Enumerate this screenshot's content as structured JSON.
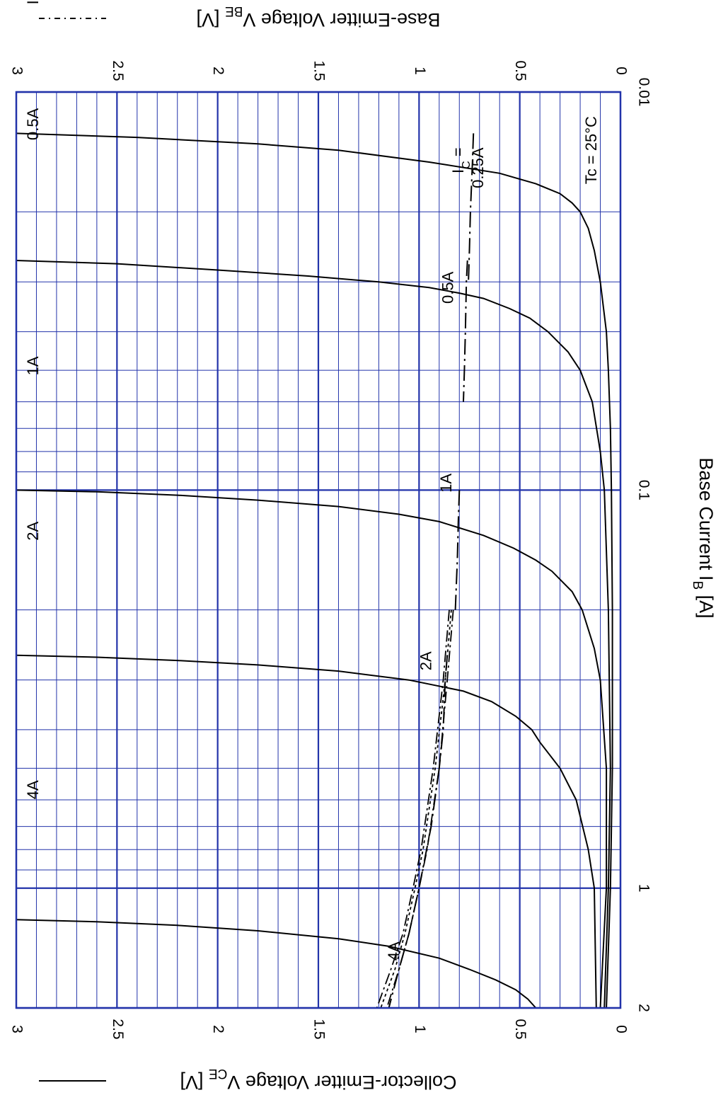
{
  "chart_data": {
    "type": "line",
    "orientation": "rotated-90-clockwise",
    "x_axis": {
      "label": "Base Current  I",
      "label_subscript": "B",
      "label_unit": "  [A]",
      "scale": "log",
      "range": [
        0.01,
        2
      ],
      "tick_labels": [
        "0.01",
        "0.1",
        "1",
        "2"
      ],
      "tick_values": [
        0.01,
        0.1,
        1,
        2
      ]
    },
    "y_axis_left": {
      "label": "Collector-Emitter Voltage  V",
      "label_subscript": "CE",
      "label_unit": " [V]",
      "range": [
        0,
        3
      ],
      "tick_labels": [
        "0",
        "0.5",
        "1",
        "1.5",
        "2",
        "2.5",
        "3"
      ],
      "tick_values": [
        0,
        0.5,
        1,
        1.5,
        2,
        2.5,
        3
      ],
      "line_style": "solid"
    },
    "y_axis_right": {
      "label": "Base-Emitter Voltage  V",
      "label_subscript": "BE",
      "label_unit": " [V]",
      "range": [
        0,
        3
      ],
      "tick_labels": [
        "0",
        "0.5",
        "1",
        "1.5",
        "2",
        "2.5",
        "3"
      ],
      "tick_values": [
        0,
        0.5,
        1,
        1.5,
        2,
        2.5,
        3
      ],
      "line_style": "dash-dot"
    },
    "grid": true,
    "grid_color": "#2233aa",
    "condition_label": "Tc = 25°C",
    "vce_series": [
      {
        "name": "IC = 0.25A",
        "label": "I",
        "label_sub": "C",
        "label_rest": " = 0.25A",
        "x": [
          0.0127,
          0.013,
          0.0135,
          0.014,
          0.015,
          0.016,
          0.017,
          0.018,
          0.019,
          0.02,
          0.022,
          0.025,
          0.03,
          0.04,
          0.05,
          0.07,
          0.1,
          0.2,
          0.5,
          1.0,
          2.0
        ],
        "y": [
          3.0,
          2.4,
          1.8,
          1.4,
          0.95,
          0.6,
          0.42,
          0.3,
          0.24,
          0.2,
          0.16,
          0.13,
          0.1,
          0.07,
          0.06,
          0.05,
          0.045,
          0.04,
          0.04,
          0.05,
          0.07
        ]
      },
      {
        "name": "0.5A",
        "label": "0.5A",
        "x": [
          0.0265,
          0.027,
          0.028,
          0.029,
          0.03,
          0.031,
          0.032,
          0.033,
          0.035,
          0.037,
          0.04,
          0.045,
          0.05,
          0.06,
          0.08,
          0.1,
          0.2,
          0.5,
          1.0,
          2.0
        ],
        "y": [
          3.0,
          2.5,
          2.0,
          1.55,
          1.2,
          0.95,
          0.8,
          0.68,
          0.55,
          0.45,
          0.36,
          0.26,
          0.2,
          0.14,
          0.1,
          0.08,
          0.06,
          0.05,
          0.06,
          0.08
        ]
      },
      {
        "name": "1A",
        "label": "1A",
        "x": [
          0.1,
          0.101,
          0.103,
          0.106,
          0.11,
          0.115,
          0.12,
          0.13,
          0.14,
          0.15,
          0.16,
          0.18,
          0.2,
          0.25,
          0.3,
          0.5,
          1.0,
          2.0
        ],
        "y": [
          3.0,
          2.6,
          2.2,
          1.8,
          1.4,
          1.1,
          0.9,
          0.68,
          0.53,
          0.42,
          0.34,
          0.24,
          0.19,
          0.13,
          0.1,
          0.07,
          0.07,
          0.1
        ]
      },
      {
        "name": "2A",
        "label": "2A",
        "x": [
          0.26,
          0.263,
          0.268,
          0.275,
          0.285,
          0.3,
          0.32,
          0.34,
          0.37,
          0.4,
          0.43,
          0.5,
          0.6,
          0.8,
          1.0,
          2.0
        ],
        "y": [
          3.0,
          2.6,
          2.2,
          1.8,
          1.4,
          1.05,
          0.78,
          0.64,
          0.52,
          0.44,
          0.4,
          0.3,
          0.22,
          0.16,
          0.13,
          0.12
        ]
      },
      {
        "name": "4A",
        "label": "4A",
        "x": [
          1.2,
          1.215,
          1.24,
          1.28,
          1.34,
          1.4,
          1.5,
          1.6,
          1.7,
          1.8,
          1.9,
          2.0
        ],
        "y": [
          3.0,
          2.6,
          2.2,
          1.8,
          1.4,
          1.15,
          0.9,
          0.75,
          0.62,
          0.52,
          0.46,
          0.42
        ]
      }
    ],
    "vbe_series": [
      {
        "name": "IC = 0.25A",
        "label": "I",
        "label_sub": "C",
        "label_rest": " =",
        "label_line2": "0.25A",
        "x": [
          0.0127,
          0.015,
          0.02,
          0.025,
          0.03
        ],
        "y": [
          0.73,
          0.735,
          0.745,
          0.75,
          0.755
        ]
      },
      {
        "name": "0.5A",
        "label": "0.5A",
        "x": [
          0.0265,
          0.03,
          0.04,
          0.05,
          0.06
        ],
        "y": [
          0.76,
          0.765,
          0.77,
          0.775,
          0.78
        ]
      },
      {
        "name": "1A",
        "label": "1A",
        "x": [
          0.1,
          0.12,
          0.15,
          0.2
        ],
        "y": [
          0.8,
          0.805,
          0.81,
          0.82
        ]
      },
      {
        "name": "2A",
        "label": "2A",
        "x": [
          0.26,
          0.3,
          0.4,
          0.5
        ],
        "y": [
          0.86,
          0.87,
          0.88,
          0.9
        ]
      },
      {
        "name": "4A",
        "label": "4A",
        "x": [
          0.5,
          0.7,
          1.0,
          1.3,
          1.6,
          2.0
        ],
        "y": [
          0.9,
          0.94,
          1.0,
          1.05,
          1.1,
          1.15
        ]
      }
    ],
    "vbe_envelope": [
      {
        "x": [
          0.2,
          0.3,
          0.5,
          0.8,
          1.0,
          1.3,
          1.6,
          2.0
        ],
        "y": [
          0.83,
          0.86,
          0.9,
          0.96,
          1.0,
          1.05,
          1.1,
          1.16
        ]
      },
      {
        "x": [
          0.2,
          0.3,
          0.5,
          0.8,
          1.0,
          1.3,
          1.6,
          2.0
        ],
        "y": [
          0.84,
          0.87,
          0.92,
          0.98,
          1.02,
          1.07,
          1.12,
          1.19
        ]
      },
      {
        "x": [
          0.2,
          0.3,
          0.5,
          0.8,
          1.0,
          1.3,
          1.6,
          2.0
        ],
        "y": [
          0.85,
          0.88,
          0.93,
          0.99,
          1.03,
          1.08,
          1.14,
          1.21
        ]
      }
    ]
  }
}
